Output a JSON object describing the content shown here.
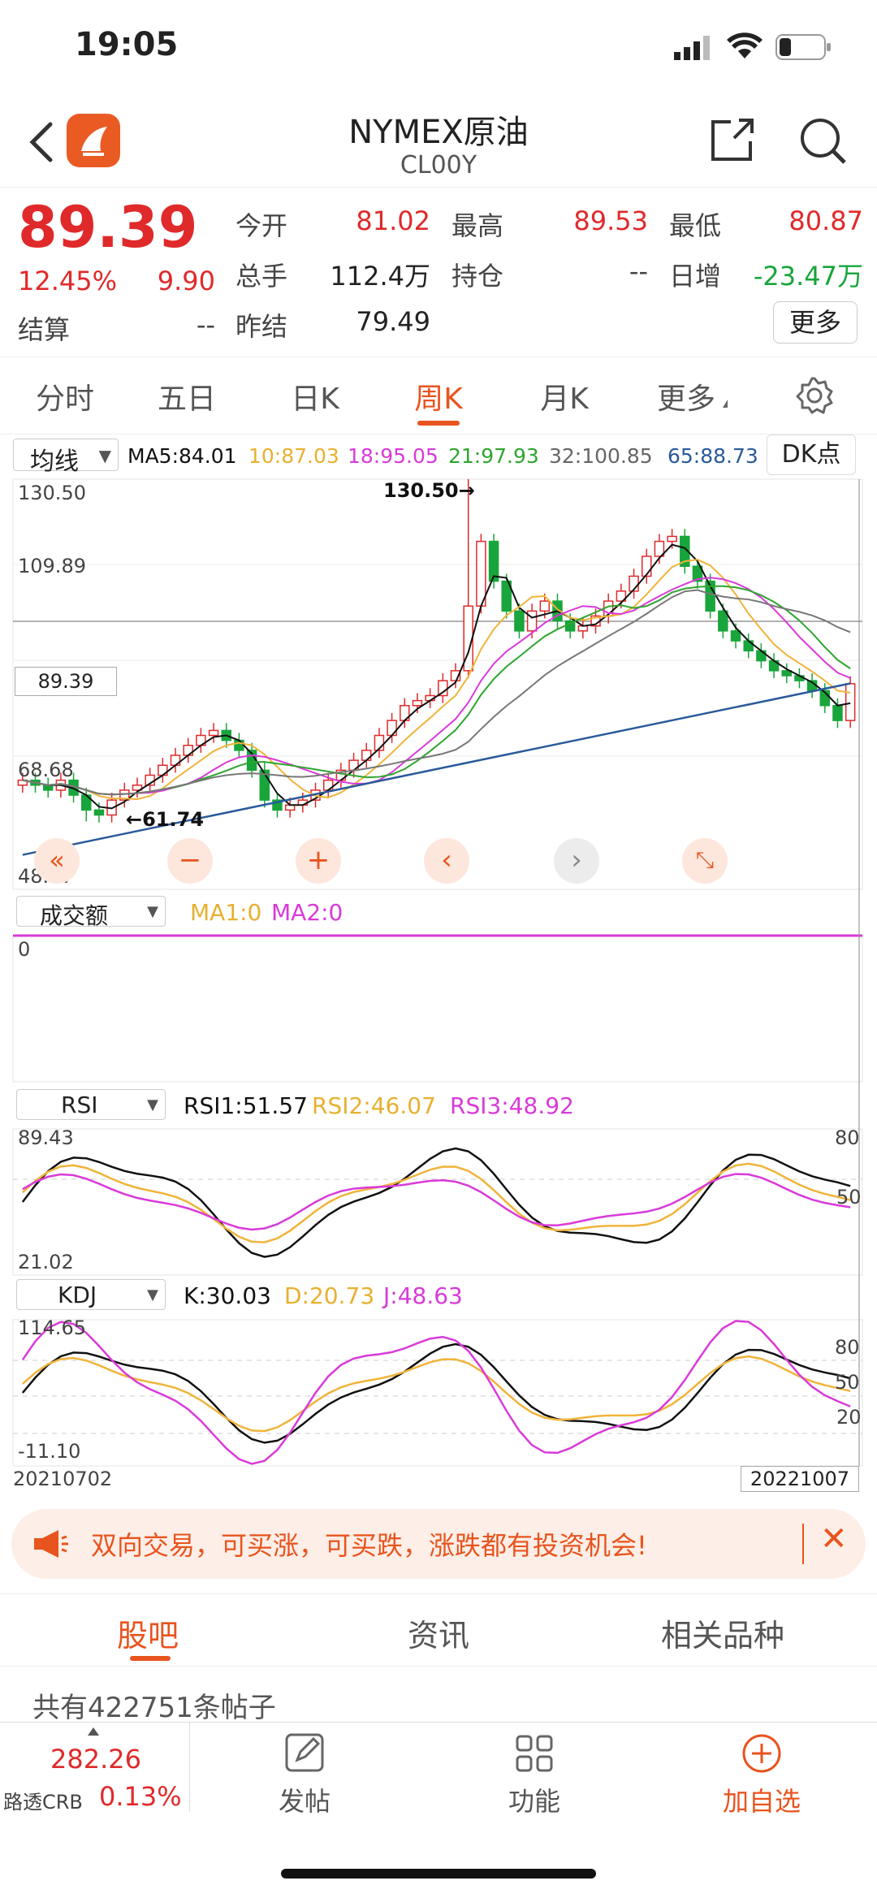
{
  "status": {
    "time": "19:05"
  },
  "nav": {
    "title": "NYMEX原油",
    "code": "CL00Y"
  },
  "quote": {
    "price": "89.39",
    "change_pct": "12.45%",
    "change": "9.90",
    "open_label": "今开",
    "open": "81.02",
    "high_label": "最高",
    "high": "89.53",
    "low_label": "最低",
    "low": "80.87",
    "volume_label": "总手",
    "volume": "112.4万",
    "oi_label": "持仓",
    "oi": "--",
    "daily_inc_label": "日增",
    "daily_inc": "-23.47万",
    "settle_label": "结算",
    "settle": "--",
    "prev_settle_label": "昨结",
    "prev_settle": "79.49",
    "more_label": "更多"
  },
  "tabs": {
    "intraday": "分时",
    "five_day": "五日",
    "day_k": "日K",
    "week_k": "周K",
    "month_k": "月K",
    "more": "更多"
  },
  "ma": {
    "type": "均线",
    "ma5": "MA5:84.01",
    "ma10": "10:87.03",
    "ma18": "18:95.05",
    "ma21": "21:97.93",
    "ma32": "32:100.85",
    "ma65": "65:88.73",
    "dk": "DK点"
  },
  "main_chart": {
    "y_top": "130.50",
    "y_2": "109.89",
    "y_3": "89.39",
    "y_4": "68.68",
    "y_bottom": "48.07",
    "max_label": "130.50→",
    "min_label": "←61.74",
    "current": "89.39",
    "date_start": "20210702",
    "date_end": "20221007"
  },
  "vol": {
    "type": "成交额",
    "ma1": "MA1:0",
    "ma2": "MA2:0",
    "zero": "0"
  },
  "rsi": {
    "type": "RSI",
    "rsi1": "RSI1:51.57",
    "rsi2": "RSI2:46.07",
    "rsi3": "RSI3:48.92",
    "top": "89.43",
    "bottom": "21.02",
    "l80": "80",
    "l50": "50"
  },
  "kdj": {
    "type": "KDJ",
    "k": "K:30.03",
    "d": "D:20.73",
    "j": "J:48.63",
    "top": "114.65",
    "bottom": "-11.10",
    "l80": "80",
    "l50": "50",
    "l20": "20"
  },
  "ad": {
    "text": "双向交易，可买涨，可买跌，涨跌都有投资机会!"
  },
  "bottom_tabs": {
    "guba": "股吧",
    "news": "资讯",
    "related": "相关品种"
  },
  "posts": {
    "count_text": "共有422751条帖子"
  },
  "toolbar": {
    "crb_value": "282.26",
    "crb_name": "路透CRB",
    "crb_pct": "0.13%",
    "post": "发帖",
    "func": "功能",
    "add": "加自选"
  },
  "colors": {
    "red": "#e0292a",
    "green": "#18a53b",
    "accent": "#e8541e",
    "ma5": "#111111",
    "ma10": "#f0b43a",
    "ma18": "#d93ad9",
    "ma21": "#2ea52e",
    "ma32": "#777777",
    "ma65": "#2a5a9a"
  }
}
